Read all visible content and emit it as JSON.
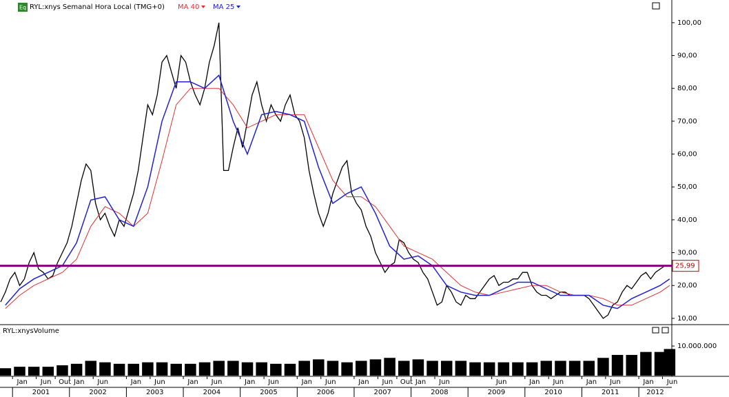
{
  "chart_data": [
    {
      "type": "line",
      "title": "RYL:xnys Semanal Hora Local (TMG+0)",
      "series": [
        {
          "color": "#000000",
          "x": [
            "2000-10",
            "2000-11",
            "2000-12",
            "2001-01",
            "2001-02",
            "2001-03",
            "2001-04",
            "2001-05",
            "2001-06",
            "2001-07",
            "2001-08",
            "2001-09",
            "2001-10",
            "2001-11",
            "2001-12",
            "2002-01",
            "2002-02",
            "2002-03",
            "2002-04",
            "2002-05",
            "2002-06",
            "2002-07",
            "2002-08",
            "2002-09",
            "2002-10",
            "2002-11",
            "2002-12",
            "2003-01",
            "2003-02",
            "2003-03",
            "2003-04",
            "2003-05",
            "2003-06",
            "2003-07",
            "2003-08",
            "2003-09",
            "2003-10",
            "2003-11",
            "2003-12",
            "2004-01",
            "2004-02",
            "2004-03",
            "2004-04",
            "2004-05",
            "2004-06",
            "2004-07",
            "2004-08",
            "2004-09",
            "2004-10",
            "2004-11",
            "2004-12",
            "2005-01",
            "2005-02",
            "2005-03",
            "2005-04",
            "2005-05",
            "2005-06",
            "2005-07",
            "2005-08",
            "2005-09",
            "2005-10",
            "2005-11",
            "2005-12",
            "2006-01",
            "2006-02",
            "2006-03",
            "2006-04",
            "2006-05",
            "2006-06",
            "2006-07",
            "2006-08",
            "2006-09",
            "2006-10",
            "2006-11",
            "2006-12",
            "2007-01",
            "2007-02",
            "2007-03",
            "2007-04",
            "2007-05",
            "2007-06",
            "2007-07",
            "2007-08",
            "2007-09",
            "2007-10",
            "2007-11",
            "2007-12",
            "2008-01",
            "2008-02",
            "2008-03",
            "2008-04",
            "2008-05",
            "2008-06",
            "2008-07",
            "2008-08",
            "2008-09",
            "2008-10",
            "2008-11",
            "2008-12",
            "2009-01",
            "2009-02",
            "2009-03",
            "2009-04",
            "2009-05",
            "2009-06",
            "2009-07",
            "2009-08",
            "2009-09",
            "2009-10",
            "2009-11",
            "2009-12",
            "2010-01",
            "2010-02",
            "2010-03",
            "2010-04",
            "2010-05",
            "2010-06",
            "2010-07",
            "2010-08",
            "2010-09",
            "2010-10",
            "2010-11",
            "2010-12",
            "2011-01",
            "2011-02",
            "2011-03",
            "2011-04",
            "2011-05",
            "2011-06",
            "2011-07",
            "2011-08",
            "2011-09",
            "2011-10",
            "2011-11",
            "2011-12",
            "2012-01",
            "2012-02",
            "2012-03",
            "2012-04",
            "2012-05",
            "2012-06",
            "2012-07"
          ],
          "values": [
            15,
            18,
            22,
            24,
            20,
            22,
            27,
            30,
            25,
            24,
            22,
            23,
            27,
            30,
            33,
            38,
            45,
            52,
            57,
            55,
            45,
            40,
            42,
            38,
            35,
            40,
            38,
            43,
            48,
            55,
            65,
            75,
            72,
            78,
            88,
            90,
            85,
            80,
            90,
            88,
            82,
            78,
            75,
            80,
            88,
            93,
            100,
            55,
            55,
            62,
            68,
            62,
            70,
            78,
            82,
            75,
            70,
            75,
            72,
            70,
            75,
            78,
            72,
            70,
            65,
            55,
            48,
            42,
            38,
            42,
            48,
            52,
            56,
            58,
            48,
            45,
            43,
            38,
            35,
            30,
            27,
            24,
            26,
            27,
            34,
            33,
            30,
            28,
            27,
            24,
            22,
            18,
            14,
            15,
            20,
            18,
            15,
            14,
            17,
            16,
            16,
            18,
            20,
            22,
            23,
            20,
            21,
            21,
            22,
            22,
            24,
            24,
            20,
            18,
            17,
            17,
            16,
            17,
            18,
            18,
            17,
            17,
            17,
            17,
            16,
            14,
            12,
            10,
            11,
            14,
            15,
            18,
            20,
            19,
            21,
            23,
            24,
            22,
            24,
            25,
            26,
            26
          ]
        },
        {
          "name": "MA 40",
          "color": "#e03030",
          "x": [
            "2000-11",
            "2001-02",
            "2001-05",
            "2001-08",
            "2001-11",
            "2002-02",
            "2002-05",
            "2002-08",
            "2002-11",
            "2003-02",
            "2003-05",
            "2003-08",
            "2003-11",
            "2004-02",
            "2004-05",
            "2004-08",
            "2004-11",
            "2005-02",
            "2005-05",
            "2005-08",
            "2005-11",
            "2006-02",
            "2006-05",
            "2006-08",
            "2006-11",
            "2007-02",
            "2007-05",
            "2007-08",
            "2007-11",
            "2008-02",
            "2008-05",
            "2008-08",
            "2008-11",
            "2009-02",
            "2009-05",
            "2009-08",
            "2009-11",
            "2010-02",
            "2010-05",
            "2010-08",
            "2010-11",
            "2011-02",
            "2011-05",
            "2011-08",
            "2011-11",
            "2012-02",
            "2012-05",
            "2012-07"
          ],
          "values": [
            13,
            17,
            20,
            22,
            24,
            28,
            38,
            44,
            42,
            38,
            42,
            58,
            75,
            80,
            80,
            80,
            75,
            68,
            70,
            72,
            72,
            72,
            62,
            52,
            47,
            47,
            44,
            38,
            32,
            30,
            28,
            24,
            20,
            18,
            17,
            18,
            19,
            20,
            20,
            18,
            17,
            17,
            16,
            14,
            14,
            16,
            18,
            20
          ]
        },
        {
          "name": "MA 25",
          "color": "#2020d0",
          "x": [
            "2000-11",
            "2001-02",
            "2001-05",
            "2001-08",
            "2001-11",
            "2002-02",
            "2002-05",
            "2002-08",
            "2002-11",
            "2003-02",
            "2003-05",
            "2003-08",
            "2003-11",
            "2004-02",
            "2004-05",
            "2004-08",
            "2004-11",
            "2005-02",
            "2005-05",
            "2005-08",
            "2005-11",
            "2006-02",
            "2006-05",
            "2006-08",
            "2006-11",
            "2007-02",
            "2007-05",
            "2007-08",
            "2007-11",
            "2008-02",
            "2008-05",
            "2008-08",
            "2008-11",
            "2009-02",
            "2009-05",
            "2009-08",
            "2009-11",
            "2010-02",
            "2010-05",
            "2010-08",
            "2010-11",
            "2011-02",
            "2011-05",
            "2011-08",
            "2011-11",
            "2012-02",
            "2012-05",
            "2012-07"
          ],
          "values": [
            14,
            19,
            22,
            24,
            26,
            33,
            46,
            47,
            40,
            38,
            50,
            70,
            82,
            82,
            80,
            84,
            70,
            60,
            72,
            73,
            72,
            70,
            56,
            45,
            48,
            50,
            42,
            32,
            28,
            29,
            26,
            20,
            18,
            17,
            17,
            19,
            21,
            21,
            19,
            17,
            17,
            17,
            14,
            13,
            16,
            18,
            20,
            22
          ]
        }
      ],
      "ylim": [
        8.3,
        106.9
      ],
      "yticks": [
        {
          "value": 10,
          "label": "10,00"
        },
        {
          "value": 20,
          "label": "20,00"
        },
        {
          "value": 30,
          "label": "30,00"
        },
        {
          "value": 40,
          "label": "40,00"
        },
        {
          "value": 50,
          "label": "50,00"
        },
        {
          "value": 60,
          "label": "60,00"
        },
        {
          "value": 70,
          "label": "70,00"
        },
        {
          "value": 80,
          "label": "80,00"
        },
        {
          "value": 90,
          "label": "90,00"
        },
        {
          "value": 100,
          "label": "100,00"
        }
      ],
      "xlim": [
        2000.78,
        2012.58
      ],
      "xticks": [
        {
          "value": 2001,
          "label": "Jan"
        },
        {
          "value": 2001.4167,
          "label": "Jun"
        },
        {
          "value": 2001.75,
          "label": "Out"
        },
        {
          "value": 2002,
          "label": "Jan"
        },
        {
          "value": 2002.4167,
          "label": "Jun"
        },
        {
          "value": 2003,
          "label": "Jan"
        },
        {
          "value": 2003.4167,
          "label": "Jun"
        },
        {
          "value": 2004,
          "label": "Jan"
        },
        {
          "value": 2004.4167,
          "label": "Jun"
        },
        {
          "value": 2005,
          "label": "Jan"
        },
        {
          "value": 2005.4167,
          "label": "Jun"
        },
        {
          "value": 2006,
          "label": "Jan"
        },
        {
          "value": 2006.4167,
          "label": "Jun"
        },
        {
          "value": 2007,
          "label": "Jan"
        },
        {
          "value": 2007.4167,
          "label": "Jun"
        },
        {
          "value": 2007.75,
          "label": "Out"
        },
        {
          "value": 2008,
          "label": "Jan"
        },
        {
          "value": 2008.4167,
          "label": "Jun"
        },
        {
          "value": 2009.4167,
          "label": "Jun"
        },
        {
          "value": 2010,
          "label": "Jan"
        },
        {
          "value": 2010.4167,
          "label": "Jun"
        },
        {
          "value": 2011,
          "label": "Jan"
        },
        {
          "value": 2011.4167,
          "label": "Jun"
        },
        {
          "value": 2012,
          "label": "Jan"
        },
        {
          "value": 2012.4167,
          "label": "Jun"
        }
      ],
      "year_ticks": [
        2001,
        2002,
        2003,
        2004,
        2005,
        2006,
        2007,
        2008,
        2009,
        2010,
        2011,
        2012
      ],
      "hline": {
        "value": 25.99,
        "label": "25,99",
        "color": "#800080"
      }
    },
    {
      "type": "bar",
      "title": "RYL:xnysVolume",
      "color": "#000000",
      "x": [
        "2000-11",
        "2001-02",
        "2001-05",
        "2001-08",
        "2001-11",
        "2002-02",
        "2002-05",
        "2002-08",
        "2002-11",
        "2003-02",
        "2003-05",
        "2003-08",
        "2003-11",
        "2004-02",
        "2004-05",
        "2004-08",
        "2004-11",
        "2005-02",
        "2005-05",
        "2005-08",
        "2005-11",
        "2006-02",
        "2006-05",
        "2006-08",
        "2006-11",
        "2007-02",
        "2007-05",
        "2007-08",
        "2007-11",
        "2008-02",
        "2008-05",
        "2008-08",
        "2008-11",
        "2009-02",
        "2009-05",
        "2009-08",
        "2009-11",
        "2010-02",
        "2010-05",
        "2010-08",
        "2010-11",
        "2011-02",
        "2011-05",
        "2011-08",
        "2011-11",
        "2012-02",
        "2012-05",
        "2012-07"
      ],
      "values": [
        2500000,
        3000000,
        3000000,
        3000000,
        3500000,
        4000000,
        5000000,
        4500000,
        4000000,
        4000000,
        4500000,
        4500000,
        4000000,
        4000000,
        4500000,
        5000000,
        5000000,
        4500000,
        4500000,
        4000000,
        4000000,
        5000000,
        5500000,
        5000000,
        4500000,
        5000000,
        5500000,
        6000000,
        5000000,
        5500000,
        5000000,
        5000000,
        5000000,
        4500000,
        4500000,
        4500000,
        4500000,
        4500000,
        5000000,
        5000000,
        5000000,
        5000000,
        6000000,
        7000000,
        7000000,
        8000000,
        8000000,
        9000000
      ],
      "ylim": [
        0,
        17000000
      ],
      "yticks": [
        {
          "value": 10000000,
          "label": "10.000.000"
        }
      ]
    }
  ]
}
